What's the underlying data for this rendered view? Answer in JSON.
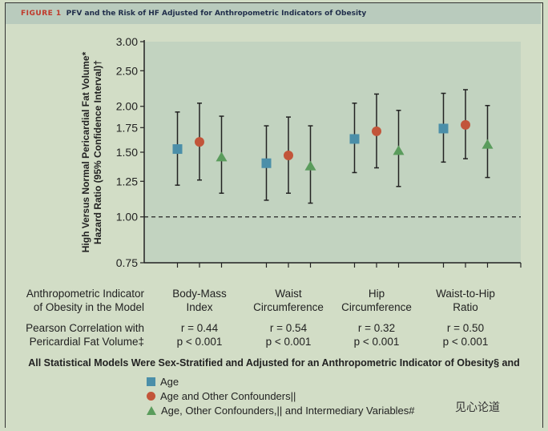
{
  "header": {
    "figure_label": "FIGURE 1",
    "title": "PFV and the Risk of HF Adjusted for Anthropometric Indicators of Obesity"
  },
  "chart_data": {
    "type": "scatter",
    "title": "PFV and the Risk of HF Adjusted for Anthropometric Indicators of Obesity",
    "ylabel_line1": "High Versus Normal Pericardial Fat Volume*",
    "ylabel_line2": "Hazard Ratio (95% Confidence Interval)†",
    "yscale": "log",
    "ylim": [
      0.75,
      3.0
    ],
    "yticks": [
      0.75,
      1.0,
      1.25,
      1.5,
      1.75,
      2.0,
      2.5,
      3.0
    ],
    "ytick_labels": [
      "0.75",
      "1.00",
      "1.25",
      "1.50",
      "1.75",
      "2.00",
      "2.50",
      "3.00"
    ],
    "reference_line": 1.0,
    "categories": [
      "Body-Mass Index",
      "Waist Circumference",
      "Hip Circumference",
      "Waist-to-Hip Ratio"
    ],
    "series": [
      {
        "name": "Age",
        "marker": "square",
        "color": "#4b8fa9",
        "values": [
          1.53,
          1.4,
          1.63,
          1.74
        ],
        "lower": [
          1.22,
          1.11,
          1.32,
          1.41
        ],
        "upper": [
          1.93,
          1.77,
          2.04,
          2.17
        ]
      },
      {
        "name": "Age and Other Confounders||",
        "marker": "circle",
        "color": "#c2553a",
        "values": [
          1.6,
          1.47,
          1.71,
          1.78
        ],
        "lower": [
          1.26,
          1.16,
          1.36,
          1.44
        ],
        "upper": [
          2.04,
          1.87,
          2.16,
          2.22
        ]
      },
      {
        "name": "Age, Other Confounders,|| and Intermediary Variables#",
        "marker": "triangle",
        "color": "#5a9c5c",
        "values": [
          1.46,
          1.38,
          1.52,
          1.58
        ],
        "lower": [
          1.16,
          1.09,
          1.21,
          1.28
        ],
        "upper": [
          1.88,
          1.77,
          1.95,
          2.01
        ]
      }
    ]
  },
  "rows": {
    "indicator_label_1": "Anthropometric Indicator",
    "indicator_label_2": "of Obesity in the Model",
    "categories": [
      [
        "Body-Mass",
        "Index"
      ],
      [
        "Waist",
        "Circumference"
      ],
      [
        "Hip",
        "Circumference"
      ],
      [
        "Waist-to-Hip",
        "Ratio"
      ]
    ],
    "pearson_label_1": "Pearson Correlation with",
    "pearson_label_2": "Pericardial Fat Volume‡",
    "r": [
      "r = 0.44",
      "r = 0.54",
      "r = 0.32",
      "r = 0.50"
    ],
    "p": [
      "p < 0.001",
      "p < 0.001",
      "p < 0.001",
      "p < 0.001"
    ]
  },
  "note": "All Statistical Models Were Sex-Stratified and Adjusted for an Anthropometric Indicator of Obesity§ and",
  "legend": [
    "Age",
    "Age and Other Confounders||",
    "Age, Other Confounders,|| and Intermediary Variables#"
  ],
  "watermark": "见心论道"
}
